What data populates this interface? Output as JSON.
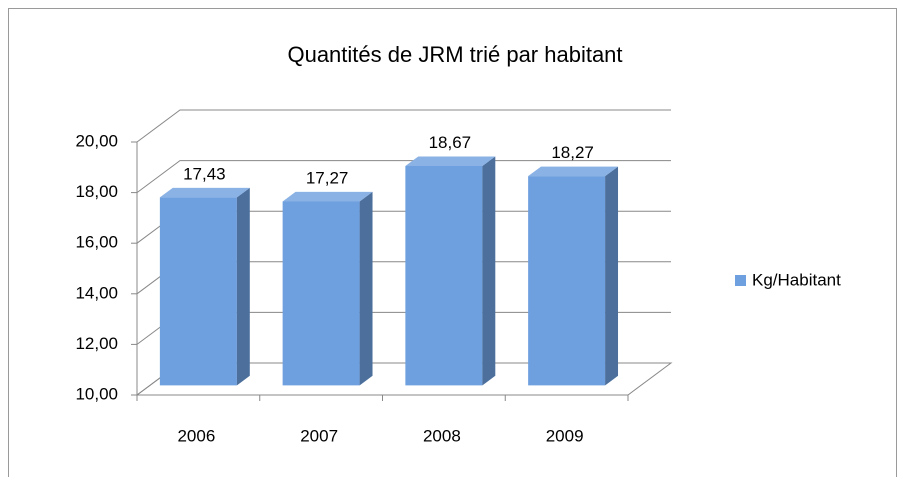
{
  "chart_data": {
    "type": "bar3d",
    "title": "Quantités de JRM trié par habitant",
    "categories": [
      "2006",
      "2007",
      "2008",
      "2009"
    ],
    "series": [
      {
        "name": "Kg/Habitant",
        "color": "#6e9fdf",
        "values": [
          17.43,
          17.27,
          18.67,
          18.27
        ],
        "value_labels": [
          "17,43",
          "17,27",
          "18,67",
          "18,27"
        ]
      }
    ],
    "ylim": [
      10,
      20
    ],
    "yticks": [
      {
        "value": 10,
        "label": "10,00"
      },
      {
        "value": 12,
        "label": "12,00"
      },
      {
        "value": 14,
        "label": "14,00"
      },
      {
        "value": 16,
        "label": "16,00"
      },
      {
        "value": 18,
        "label": "18,00"
      },
      {
        "value": 20,
        "label": "20,00"
      }
    ],
    "grid": true,
    "legend": "right"
  }
}
